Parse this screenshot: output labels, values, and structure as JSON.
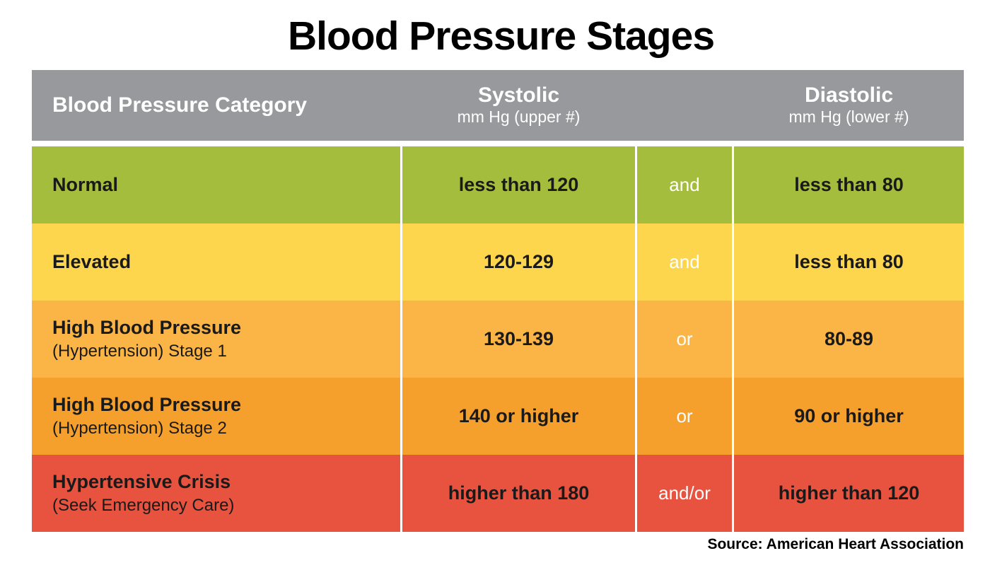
{
  "title": "Blood Pressure Stages",
  "source": "Source: American Heart Association",
  "colors": {
    "header_bg": "#98999C",
    "header_text": "#FFFFFF",
    "row_text": "#1A1A1A",
    "divider": "#FFFFFF",
    "normal_green": "#A5BD3C",
    "elevated_yellow": "#FDD64D",
    "stage1_amber": "#FBB446",
    "stage2_orange": "#F5A02D",
    "crisis_red": "#E85340"
  },
  "table": {
    "header": {
      "category": "Blood Pressure Category",
      "systolic_title": "Systolic",
      "systolic_sub": "mm Hg (upper #)",
      "diastolic_title": "Diastolic",
      "diastolic_sub": "mm Hg (lower #)"
    },
    "rows": [
      {
        "category": "Normal",
        "category_note": "",
        "systolic": "less than 120",
        "connector": "and",
        "diastolic": "less than 80",
        "color": "#A5BD3C"
      },
      {
        "category": "Elevated",
        "category_note": "",
        "systolic": "120-129",
        "connector": "and",
        "diastolic": "less than 80",
        "color": "#FDD64D"
      },
      {
        "category": "High Blood Pressure",
        "category_note": "(Hypertension) Stage 1",
        "systolic": "130-139",
        "connector": "or",
        "diastolic": "80-89",
        "color": "#FBB446"
      },
      {
        "category": "High Blood Pressure",
        "category_note": "(Hypertension) Stage 2",
        "systolic": "140 or higher",
        "connector": "or",
        "diastolic": "90 or higher",
        "color": "#F5A02D"
      },
      {
        "category": "Hypertensive Crisis",
        "category_note": "(Seek Emergency Care)",
        "systolic": "higher than 180",
        "connector": "and/or",
        "diastolic": "higher than 120",
        "color": "#E85340"
      }
    ]
  },
  "chart_data": {
    "type": "table",
    "title": "Blood Pressure Stages",
    "columns": [
      "Blood Pressure Category",
      "Systolic mm Hg (upper #)",
      "and/or",
      "Diastolic mm Hg (lower #)"
    ],
    "rows": [
      [
        "Normal",
        "less than 120",
        "and",
        "less than 80"
      ],
      [
        "Elevated",
        "120-129",
        "and",
        "less than 80"
      ],
      [
        "High Blood Pressure (Hypertension) Stage 1",
        "130-139",
        "or",
        "80-89"
      ],
      [
        "High Blood Pressure (Hypertension) Stage 2",
        "140 or higher",
        "or",
        "90 or higher"
      ],
      [
        "Hypertensive Crisis (Seek Emergency Care)",
        "higher than 180",
        "and/or",
        "higher than 120"
      ]
    ],
    "source": "Source: American Heart Association",
    "legend_position": "none",
    "grid": false
  }
}
